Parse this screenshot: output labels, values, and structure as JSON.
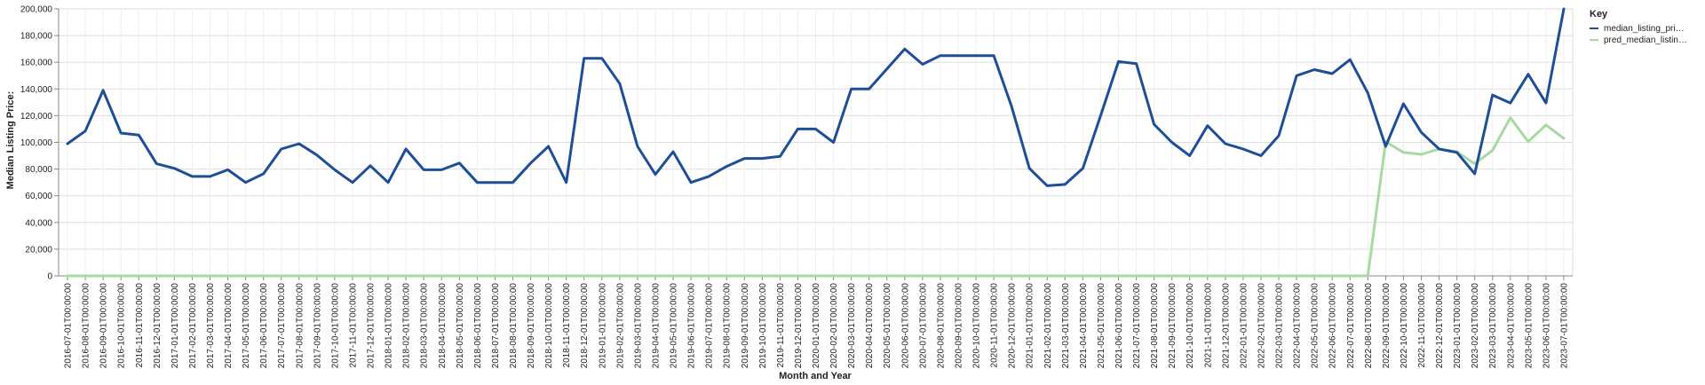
{
  "chart_data": {
    "type": "line",
    "xlabel": "Month and Year",
    "ylabel": "Median Listing Price:",
    "ylim": [
      0,
      200000
    ],
    "yticks": [
      "0",
      "20,000",
      "40,000",
      "60,000",
      "80,000",
      "100,000",
      "120,000",
      "140,000",
      "160,000",
      "180,000",
      "200,000"
    ],
    "grid": true,
    "legend": {
      "title": "Key",
      "position": "top-right",
      "entries": [
        "median_listing_pri…",
        "pred_median_listin…"
      ]
    },
    "x": [
      "2016-07-01T00:00:00",
      "2016-08-01T00:00:00",
      "2016-09-01T00:00:00",
      "2016-10-01T00:00:00",
      "2016-11-01T00:00:00",
      "2016-12-01T00:00:00",
      "2017-01-01T00:00:00",
      "2017-02-01T00:00:00",
      "2017-03-01T00:00:00",
      "2017-04-01T00:00:00",
      "2017-05-01T00:00:00",
      "2017-06-01T00:00:00",
      "2017-07-01T00:00:00",
      "2017-08-01T00:00:00",
      "2017-09-01T00:00:00",
      "2017-10-01T00:00:00",
      "2017-11-01T00:00:00",
      "2017-12-01T00:00:00",
      "2018-01-01T00:00:00",
      "2018-02-01T00:00:00",
      "2018-03-01T00:00:00",
      "2018-04-01T00:00:00",
      "2018-05-01T00:00:00",
      "2018-06-01T00:00:00",
      "2018-07-01T00:00:00",
      "2018-08-01T00:00:00",
      "2018-09-01T00:00:00",
      "2018-10-01T00:00:00",
      "2018-11-01T00:00:00",
      "2018-12-01T00:00:00",
      "2019-01-01T00:00:00",
      "2019-02-01T00:00:00",
      "2019-03-01T00:00:00",
      "2019-04-01T00:00:00",
      "2019-05-01T00:00:00",
      "2019-06-01T00:00:00",
      "2019-07-01T00:00:00",
      "2019-08-01T00:00:00",
      "2019-09-01T00:00:00",
      "2019-10-01T00:00:00",
      "2019-11-01T00:00:00",
      "2019-12-01T00:00:00",
      "2020-01-01T00:00:00",
      "2020-02-01T00:00:00",
      "2020-03-01T00:00:00",
      "2020-04-01T00:00:00",
      "2020-05-01T00:00:00",
      "2020-06-01T00:00:00",
      "2020-07-01T00:00:00",
      "2020-08-01T00:00:00",
      "2020-09-01T00:00:00",
      "2020-10-01T00:00:00",
      "2020-11-01T00:00:00",
      "2020-12-01T00:00:00",
      "2021-01-01T00:00:00",
      "2021-02-01T00:00:00",
      "2021-03-01T00:00:00",
      "2021-04-01T00:00:00",
      "2021-05-01T00:00:00",
      "2021-06-01T00:00:00",
      "2021-07-01T00:00:00",
      "2021-08-01T00:00:00",
      "2021-09-01T00:00:00",
      "2021-10-01T00:00:00",
      "2021-11-01T00:00:00",
      "2021-12-01T00:00:00",
      "2022-01-01T00:00:00",
      "2022-02-01T00:00:00",
      "2022-03-01T00:00:00",
      "2022-04-01T00:00:00",
      "2022-05-01T00:00:00",
      "2022-06-01T00:00:00",
      "2022-07-01T00:00:00",
      "2022-08-01T00:00:00",
      "2022-09-01T00:00:00",
      "2022-10-01T00:00:00",
      "2022-11-01T00:00:00",
      "2022-12-01T00:00:00",
      "2023-01-01T00:00:00",
      "2023-02-01T00:00:00",
      "2023-03-01T00:00:00",
      "2023-04-01T00:00:00",
      "2023-05-01T00:00:00",
      "2023-06-01T00:00:00",
      "2023-07-01T00:00:00"
    ],
    "series": [
      {
        "name": "median_listing_pri…",
        "color": "#1f4e99",
        "values": [
          99000,
          108500,
          139000,
          107000,
          105500,
          84000,
          80500,
          74500,
          74500,
          79500,
          70000,
          76500,
          95000,
          99000,
          90500,
          79500,
          70000,
          82500,
          70000,
          95000,
          79500,
          79500,
          84500,
          70000,
          70000,
          70000,
          84500,
          97000,
          70000,
          163000,
          163000,
          144000,
          97000,
          76000,
          93000,
          70000,
          74500,
          82000,
          88000,
          88000,
          89500,
          110000,
          110000,
          100000,
          140000,
          140000,
          155000,
          170000,
          158500,
          165000,
          165000,
          165000,
          165000,
          127000,
          80500,
          67500,
          68500,
          80500,
          120000,
          160500,
          159000,
          113500,
          100000,
          90000,
          112500,
          99000,
          95000,
          90000,
          105000,
          150000,
          154500,
          151500,
          162000,
          137000,
          97000,
          129000,
          107500,
          95000,
          92500,
          76500,
          135500,
          129500,
          151000,
          129500,
          200000
        ]
      },
      {
        "name": "pred_median_listin…",
        "color": "#a6dba0",
        "values": [
          0,
          0,
          0,
          0,
          0,
          0,
          0,
          0,
          0,
          0,
          0,
          0,
          0,
          0,
          0,
          0,
          0,
          0,
          0,
          0,
          0,
          0,
          0,
          0,
          0,
          0,
          0,
          0,
          0,
          0,
          0,
          0,
          0,
          0,
          0,
          0,
          0,
          0,
          0,
          0,
          0,
          0,
          0,
          0,
          0,
          0,
          0,
          0,
          0,
          0,
          0,
          0,
          0,
          0,
          0,
          0,
          0,
          0,
          0,
          0,
          0,
          0,
          0,
          0,
          0,
          0,
          0,
          0,
          0,
          0,
          0,
          0,
          0,
          0,
          100500,
          92500,
          91000,
          95000,
          93000,
          84000,
          94000,
          118500,
          100500,
          113000,
          103000
        ]
      }
    ]
  }
}
